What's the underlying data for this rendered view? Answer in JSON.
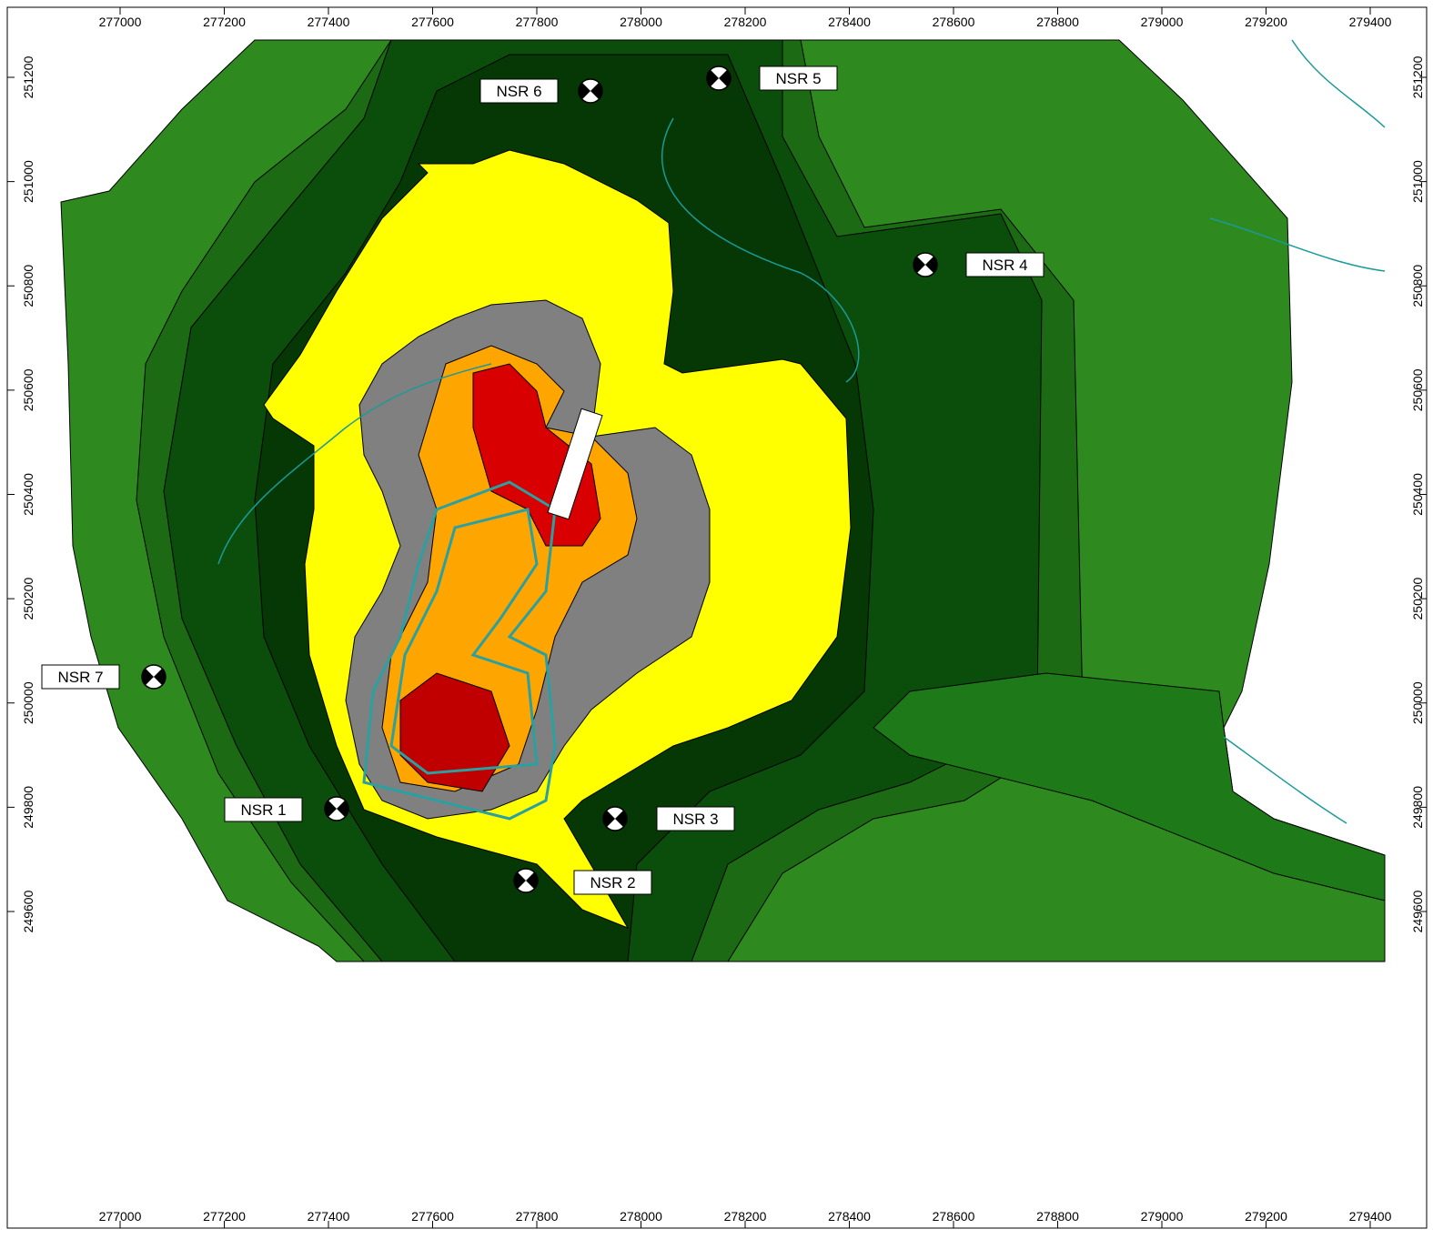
{
  "map": {
    "x_ticks": [
      277000,
      277200,
      277400,
      277600,
      277800,
      278000,
      278200,
      278400,
      278600,
      278800,
      279000,
      279200,
      279400
    ],
    "y_ticks": [
      249600,
      249800,
      250000,
      250200,
      250400,
      250600,
      250800,
      251000,
      251200
    ],
    "receptors": [
      "NSR 1",
      "NSR 2",
      "NSR 3",
      "NSR 4",
      "NSR 5",
      "NSR 6",
      "NSR 7"
    ]
  }
}
